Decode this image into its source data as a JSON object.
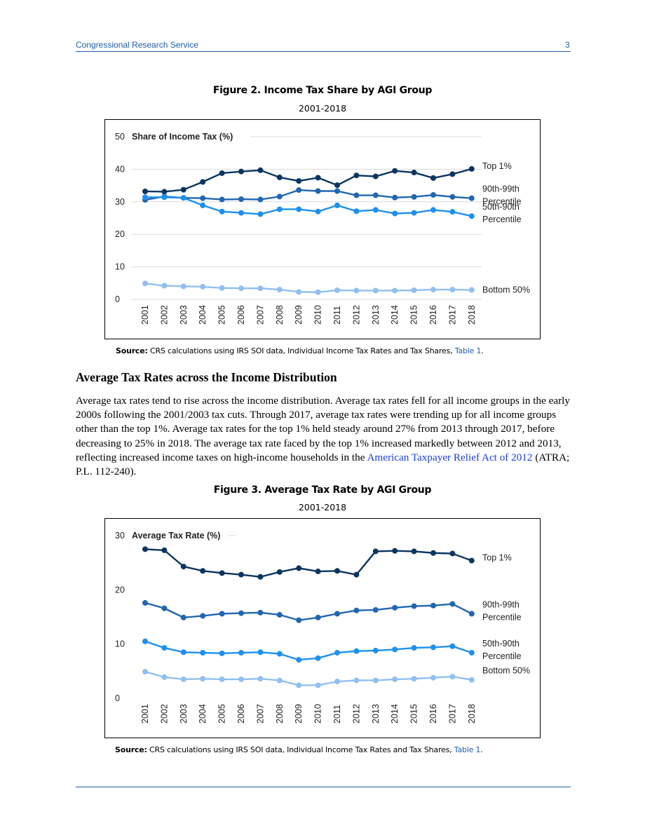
{
  "header": {
    "left": "Congressional Research Service",
    "page_number": "3"
  },
  "figure2": {
    "title": "Figure 2. Income Tax Share by AGI Group",
    "subtitle": "2001-2018",
    "source_label": "Source:",
    "source_text": " CRS calculations using IRS SOI data, Individual Income Tax Rates and Tax Shares, ",
    "source_link": "Table 1",
    "source_end": "."
  },
  "section": {
    "heading": "Average Tax Rates across the Income Distribution",
    "para_before_link": "Average tax rates tend to rise across the income distribution. Average tax rates fell for all income groups in the early 2000s following the 2001/2003 tax cuts. Through 2017, average tax rates were trending up for all income groups other than the top 1%. Average tax rates for the top 1% held steady around 27% from 2013 through 2017, before decreasing to 25% in 2018. The average tax rate faced by the top 1% increased markedly between 2012 and 2013, reflecting increased income taxes on high-income households in the ",
    "para_link": "American Taxpayer Relief Act of 2012",
    "para_after_link": " (ATRA; P.L. 112-240)."
  },
  "figure3": {
    "title": "Figure 3. Average Tax Rate by AGI Group",
    "subtitle": "2001-2018",
    "source_label": "Source:",
    "source_text": " CRS calculations using IRS SOI data, Individual Income Tax Rates and Tax Shares, ",
    "source_link": "Table 1",
    "source_end": "."
  },
  "chart_data": [
    {
      "type": "line",
      "title": "Share of Income Tax (%)",
      "x": [
        "2001",
        "2002",
        "2003",
        "2004",
        "2005",
        "2006",
        "2007",
        "2008",
        "2009",
        "2010",
        "2011",
        "2012",
        "2013",
        "2014",
        "2015",
        "2016",
        "2017",
        "2018"
      ],
      "ylim": [
        0,
        50
      ],
      "yticks": [
        0,
        10,
        20,
        30,
        40,
        50
      ],
      "grid": true,
      "legend": "inline-right",
      "series": [
        {
          "name": "Top 1%",
          "label_lines": [
            "Top 1%"
          ],
          "color": "#0b3560",
          "values": [
            33.2,
            33.1,
            33.7,
            36.1,
            38.8,
            39.3,
            39.7,
            37.5,
            36.4,
            37.4,
            35.1,
            38.1,
            37.8,
            39.5,
            39.0,
            37.3,
            38.5,
            40.1
          ]
        },
        {
          "name": "90th-99th Percentile",
          "label_lines": [
            "90th-99th",
            "Percentile"
          ],
          "color": "#2166b0",
          "values": [
            30.6,
            31.6,
            31.2,
            31.1,
            30.7,
            30.8,
            30.7,
            31.6,
            33.6,
            33.3,
            33.3,
            32.0,
            32.0,
            31.3,
            31.5,
            32.1,
            31.5,
            31.1
          ]
        },
        {
          "name": "50th-90th Percentile",
          "label_lines": [
            "50th-90th",
            "Percentile"
          ],
          "color": "#1e90ee",
          "values": [
            31.4,
            31.4,
            31.2,
            28.9,
            27.0,
            26.6,
            26.2,
            27.7,
            27.7,
            27.0,
            28.9,
            27.1,
            27.5,
            26.4,
            26.6,
            27.5,
            26.9,
            25.6
          ]
        },
        {
          "name": "Bottom 50%",
          "label_lines": [
            "Bottom 50%"
          ],
          "color": "#90bff0",
          "values": [
            4.9,
            4.2,
            4.0,
            3.9,
            3.5,
            3.4,
            3.4,
            3.0,
            2.3,
            2.2,
            2.8,
            2.7,
            2.7,
            2.7,
            2.8,
            3.0,
            3.0,
            2.9
          ]
        }
      ]
    },
    {
      "type": "line",
      "title": "Average Tax Rate (%)",
      "x": [
        "2001",
        "2002",
        "2003",
        "2004",
        "2005",
        "2006",
        "2007",
        "2008",
        "2009",
        "2010",
        "2011",
        "2012",
        "2013",
        "2014",
        "2015",
        "2016",
        "2017",
        "2018"
      ],
      "ylim": [
        0,
        30
      ],
      "yticks": [
        0,
        10,
        20,
        30
      ],
      "grid": false,
      "legend": "inline-right",
      "series": [
        {
          "name": "Top 1%",
          "label_lines": [
            "Top 1%"
          ],
          "color": "#0b3560",
          "values": [
            27.5,
            27.3,
            24.3,
            23.5,
            23.1,
            22.8,
            22.4,
            23.3,
            24.0,
            23.4,
            23.5,
            22.8,
            27.1,
            27.2,
            27.1,
            26.8,
            26.7,
            25.4
          ]
        },
        {
          "name": "90th-99th Percentile",
          "label_lines": [
            "90th-99th",
            "Percentile"
          ],
          "color": "#2166b0",
          "values": [
            17.6,
            16.6,
            14.9,
            15.2,
            15.6,
            15.7,
            15.8,
            15.4,
            14.4,
            14.9,
            15.6,
            16.2,
            16.3,
            16.7,
            17.0,
            17.1,
            17.4,
            15.6
          ]
        },
        {
          "name": "50th-90th Percentile",
          "label_lines": [
            "50th-90th",
            "Percentile"
          ],
          "color": "#1e90ee",
          "values": [
            10.5,
            9.3,
            8.5,
            8.4,
            8.3,
            8.4,
            8.5,
            8.2,
            7.1,
            7.4,
            8.4,
            8.7,
            8.8,
            9.0,
            9.3,
            9.4,
            9.6,
            8.4
          ]
        },
        {
          "name": "Bottom 50%",
          "label_lines": [
            "Bottom 50%"
          ],
          "color": "#90bff0",
          "values": [
            4.9,
            3.9,
            3.5,
            3.6,
            3.5,
            3.5,
            3.6,
            3.3,
            2.4,
            2.4,
            3.1,
            3.3,
            3.3,
            3.5,
            3.6,
            3.8,
            4.0,
            3.4
          ]
        }
      ]
    }
  ]
}
